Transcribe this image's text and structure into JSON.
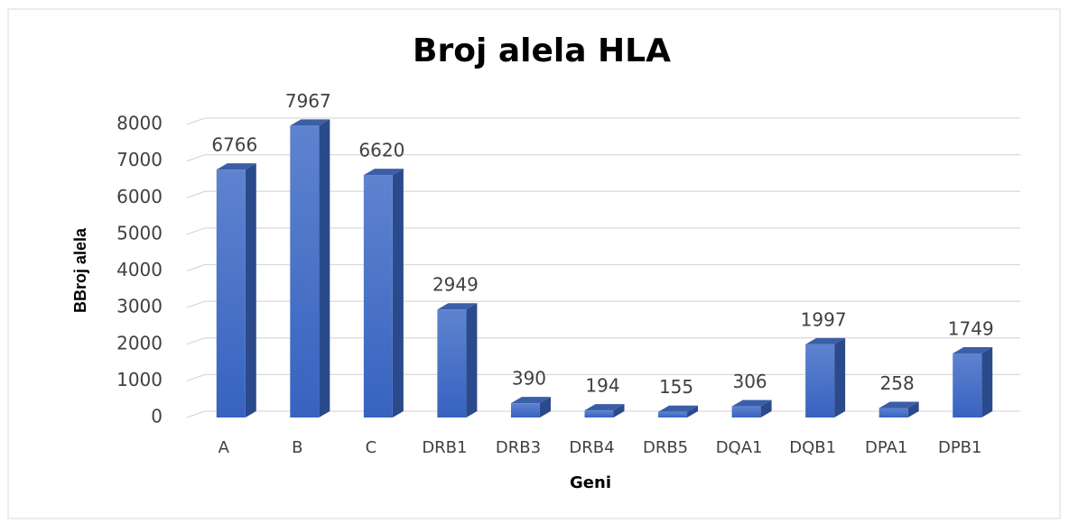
{
  "chart_data": {
    "type": "bar3d",
    "title": "Broj alela HLA",
    "x_label": "Geni",
    "y_label": "BBroj alela",
    "categories": [
      "A",
      "B",
      "C",
      "DRB1",
      "DRB3",
      "DRB4",
      "DRB5",
      "DQA1",
      "DQB1",
      "DPA1",
      "DPB1"
    ],
    "values": [
      6766,
      7967,
      6620,
      2949,
      390,
      194,
      155,
      306,
      1997,
      258,
      1749
    ],
    "color": "#4472c4",
    "ylim": [
      0,
      8000
    ],
    "yticks": [
      0,
      1000,
      2000,
      3000,
      4000,
      5000,
      6000,
      7000,
      8000
    ],
    "grid": true
  }
}
